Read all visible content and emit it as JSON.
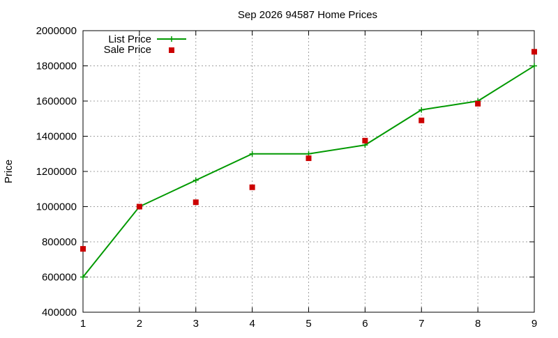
{
  "chart_data": {
    "type": "line",
    "title": "Sep 2026 94587 Home Prices",
    "xlabel": "",
    "ylabel": "Price",
    "xlim": [
      1,
      9
    ],
    "ylim": [
      400000,
      2000000
    ],
    "x": [
      1,
      2,
      3,
      4,
      5,
      6,
      7,
      8,
      9
    ],
    "x_ticks": [
      "1",
      "2",
      "3",
      "4",
      "5",
      "6",
      "7",
      "8",
      "9"
    ],
    "y_ticks": [
      "400000",
      "600000",
      "800000",
      "1000000",
      "1200000",
      "1400000",
      "1600000",
      "1800000",
      "2000000"
    ],
    "y_tick_values": [
      400000,
      600000,
      800000,
      1000000,
      1200000,
      1400000,
      1600000,
      1800000,
      2000000
    ],
    "grid": true,
    "legend_position": "top-left",
    "series": [
      {
        "name": "List Price",
        "style": "line-plus",
        "color": "#009900",
        "values": [
          600000,
          1000000,
          1150000,
          1300000,
          1300000,
          1350000,
          1550000,
          1600000,
          1800000
        ]
      },
      {
        "name": "Sale Price",
        "style": "square-points",
        "color": "#cc0000",
        "values": [
          760000,
          1000000,
          1025000,
          1110000,
          1275000,
          1375000,
          1490000,
          1585000,
          1880000
        ]
      }
    ]
  }
}
